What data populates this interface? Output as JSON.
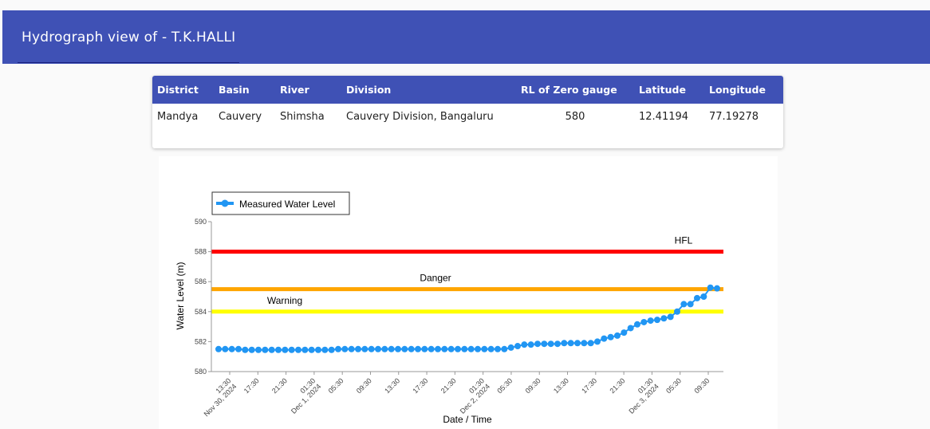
{
  "header": {
    "title": "Hydrograph view of - T.K.HALLI"
  },
  "station_table": {
    "columns": [
      "District",
      "Basin",
      "River",
      "Division",
      "RL of Zero gauge",
      "Latitude",
      "Longitude"
    ],
    "row": [
      "Mandya",
      "Cauvery",
      "Shimsha",
      "Cauvery Division, Bangaluru",
      "580",
      "12.41194",
      "77.19278"
    ]
  },
  "chart_data": {
    "type": "line",
    "title": "",
    "xlabel": "Date / Time",
    "ylabel": "Water Level (m)",
    "ylim": [
      580,
      590
    ],
    "yticks": [
      580,
      582,
      584,
      586,
      588,
      590
    ],
    "legend": {
      "position": "top-left",
      "entries": [
        "Measured Water Level"
      ]
    },
    "x_tick_labels": [
      [
        "13:30",
        "Nov 30, 2024"
      ],
      [
        "17:30"
      ],
      [
        "21:30"
      ],
      [
        "01:30",
        "Dec 1, 2024"
      ],
      [
        "05:30"
      ],
      [
        "09:30"
      ],
      [
        "13:30"
      ],
      [
        "17:30"
      ],
      [
        "21:30"
      ],
      [
        "01:30",
        "Dec 2, 2024"
      ],
      [
        "05:30"
      ],
      [
        "09:30"
      ],
      [
        "13:30"
      ],
      [
        "17:30"
      ],
      [
        "21:30"
      ],
      [
        "01:30",
        "Dec 3, 2024"
      ],
      [
        "05:30"
      ],
      [
        "09:30"
      ]
    ],
    "reference_lines": [
      {
        "label": "HFL",
        "value": 588.0,
        "color": "#ff0000"
      },
      {
        "label": "Danger",
        "value": 585.5,
        "color": "#ffa500"
      },
      {
        "label": "Warning",
        "value": 584.0,
        "color": "#ffff00"
      }
    ],
    "series": [
      {
        "name": "Measured Water Level",
        "color": "#2196f3",
        "values": [
          581.5,
          581.5,
          581.5,
          581.5,
          581.45,
          581.45,
          581.45,
          581.45,
          581.45,
          581.45,
          581.45,
          581.45,
          581.45,
          581.45,
          581.45,
          581.45,
          581.45,
          581.45,
          581.5,
          581.5,
          581.5,
          581.5,
          581.5,
          581.5,
          581.5,
          581.5,
          581.5,
          581.5,
          581.5,
          581.5,
          581.5,
          581.5,
          581.5,
          581.5,
          581.5,
          581.5,
          581.5,
          581.5,
          581.5,
          581.5,
          581.5,
          581.5,
          581.5,
          581.5,
          581.6,
          581.7,
          581.8,
          581.8,
          581.85,
          581.85,
          581.85,
          581.85,
          581.9,
          581.9,
          581.9,
          581.9,
          581.9,
          582.0,
          582.2,
          582.3,
          582.4,
          582.6,
          582.9,
          583.15,
          583.3,
          583.4,
          583.45,
          583.55,
          583.65,
          584.0,
          584.5,
          584.5,
          584.9,
          585.0,
          585.6,
          585.55
        ]
      }
    ]
  }
}
